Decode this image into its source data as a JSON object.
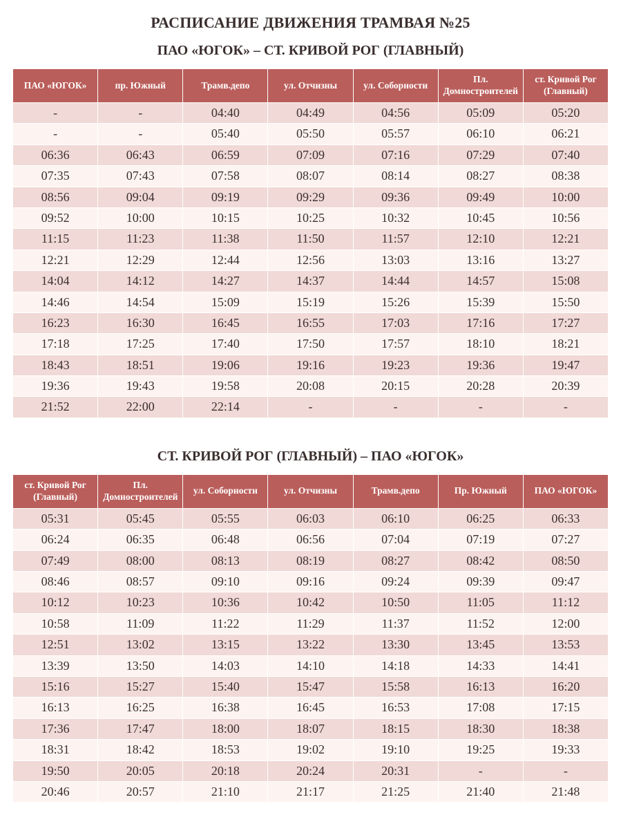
{
  "colors": {
    "header_bg": "#ba5e5b",
    "header_text": "#ffffff",
    "row_odd_bg": "#f0d9d6",
    "row_even_bg": "#fdf4f1",
    "text": "#3b2f2f",
    "page_bg": "#ffffff"
  },
  "typography": {
    "title_fontsize_pt": 16,
    "subtitle_fontsize_pt": 15,
    "header_fontsize_pt": 10,
    "cell_fontsize_pt": 13,
    "font_family": "Georgia / Times-like serif"
  },
  "title": "РАСПИСАНИЕ ДВИЖЕНИЯ ТРАМВАЯ №25",
  "table1": {
    "type": "table",
    "subtitle": "ПАО «ЮГОК» – СТ. КРИВОЙ РОГ (ГЛАВНЫЙ)",
    "columns": [
      "ПАО «ЮГОК»",
      "пр. Южный",
      "Трамв.депо",
      "ул. Отчизны",
      "ул. Соборности",
      "Пл. Домностроителей",
      "ст. Кривой Рог (Главный)"
    ],
    "rows": [
      [
        "-",
        "-",
        "04:40",
        "04:49",
        "04:56",
        "05:09",
        "05:20"
      ],
      [
        "-",
        "-",
        "05:40",
        "05:50",
        "05:57",
        "06:10",
        "06:21"
      ],
      [
        "06:36",
        "06:43",
        "06:59",
        "07:09",
        "07:16",
        "07:29",
        "07:40"
      ],
      [
        "07:35",
        "07:43",
        "07:58",
        "08:07",
        "08:14",
        "08:27",
        "08:38"
      ],
      [
        "08:56",
        "09:04",
        "09:19",
        "09:29",
        "09:36",
        "09:49",
        "10:00"
      ],
      [
        "09:52",
        "10:00",
        "10:15",
        "10:25",
        "10:32",
        "10:45",
        "10:56"
      ],
      [
        "11:15",
        "11:23",
        "11:38",
        "11:50",
        "11:57",
        "12:10",
        "12:21"
      ],
      [
        "12:21",
        "12:29",
        "12:44",
        "12:56",
        "13:03",
        "13:16",
        "13:27"
      ],
      [
        "14:04",
        "14:12",
        "14:27",
        "14:37",
        "14:44",
        "14:57",
        "15:08"
      ],
      [
        "14:46",
        "14:54",
        "15:09",
        "15:19",
        "15:26",
        "15:39",
        "15:50"
      ],
      [
        "16:23",
        "16:30",
        "16:45",
        "16:55",
        "17:03",
        "17:16",
        "17:27"
      ],
      [
        "17:18",
        "17:25",
        "17:40",
        "17:50",
        "17:57",
        "18:10",
        "18:21"
      ],
      [
        "18:43",
        "18:51",
        "19:06",
        "19:16",
        "19:23",
        "19:36",
        "19:47"
      ],
      [
        "19:36",
        "19:43",
        "19:58",
        "20:08",
        "20:15",
        "20:28",
        "20:39"
      ],
      [
        "21:52",
        "22:00",
        "22:14",
        "-",
        "-",
        "-",
        "-"
      ]
    ]
  },
  "table2": {
    "type": "table",
    "subtitle": "СТ. КРИВОЙ РОГ (ГЛАВНЫЙ) – ПАО «ЮГОК»",
    "columns": [
      "ст. Кривой Рог (Главный)",
      "Пл. Домностроителей",
      "ул. Соборности",
      "ул. Отчизны",
      "Трамв.депо",
      "Пр. Южный",
      "ПАО «ЮГОК»"
    ],
    "rows": [
      [
        "05:31",
        "05:45",
        "05:55",
        "06:03",
        "06:10",
        "06:25",
        "06:33"
      ],
      [
        "06:24",
        "06:35",
        "06:48",
        "06:56",
        "07:04",
        "07:19",
        "07:27"
      ],
      [
        "07:49",
        "08:00",
        "08:13",
        "08:19",
        "08:27",
        "08:42",
        "08:50"
      ],
      [
        "08:46",
        "08:57",
        "09:10",
        "09:16",
        "09:24",
        "09:39",
        "09:47"
      ],
      [
        "10:12",
        "10:23",
        "10:36",
        "10:42",
        "10:50",
        "11:05",
        "11:12"
      ],
      [
        "10:58",
        "11:09",
        "11:22",
        "11:29",
        "11:37",
        "11:52",
        "12:00"
      ],
      [
        "12:51",
        "13:02",
        "13:15",
        "13:22",
        "13:30",
        "13:45",
        "13:53"
      ],
      [
        "13:39",
        "13:50",
        "14:03",
        "14:10",
        "14:18",
        "14:33",
        "14:41"
      ],
      [
        "15:16",
        "15:27",
        "15:40",
        "15:47",
        "15:58",
        "16:13",
        "16:20"
      ],
      [
        "16:13",
        "16:25",
        "16:38",
        "16:45",
        "16:53",
        "17:08",
        "17:15"
      ],
      [
        "17:36",
        "17:47",
        "18:00",
        "18:07",
        "18:15",
        "18:30",
        "18:38"
      ],
      [
        "18:31",
        "18:42",
        "18:53",
        "19:02",
        "19:10",
        "19:25",
        "19:33"
      ],
      [
        "19:50",
        "20:05",
        "20:18",
        "20:24",
        "20:31",
        "-",
        "-"
      ],
      [
        "20:46",
        "20:57",
        "21:10",
        "21:17",
        "21:25",
        "21:40",
        "21:48"
      ]
    ]
  }
}
